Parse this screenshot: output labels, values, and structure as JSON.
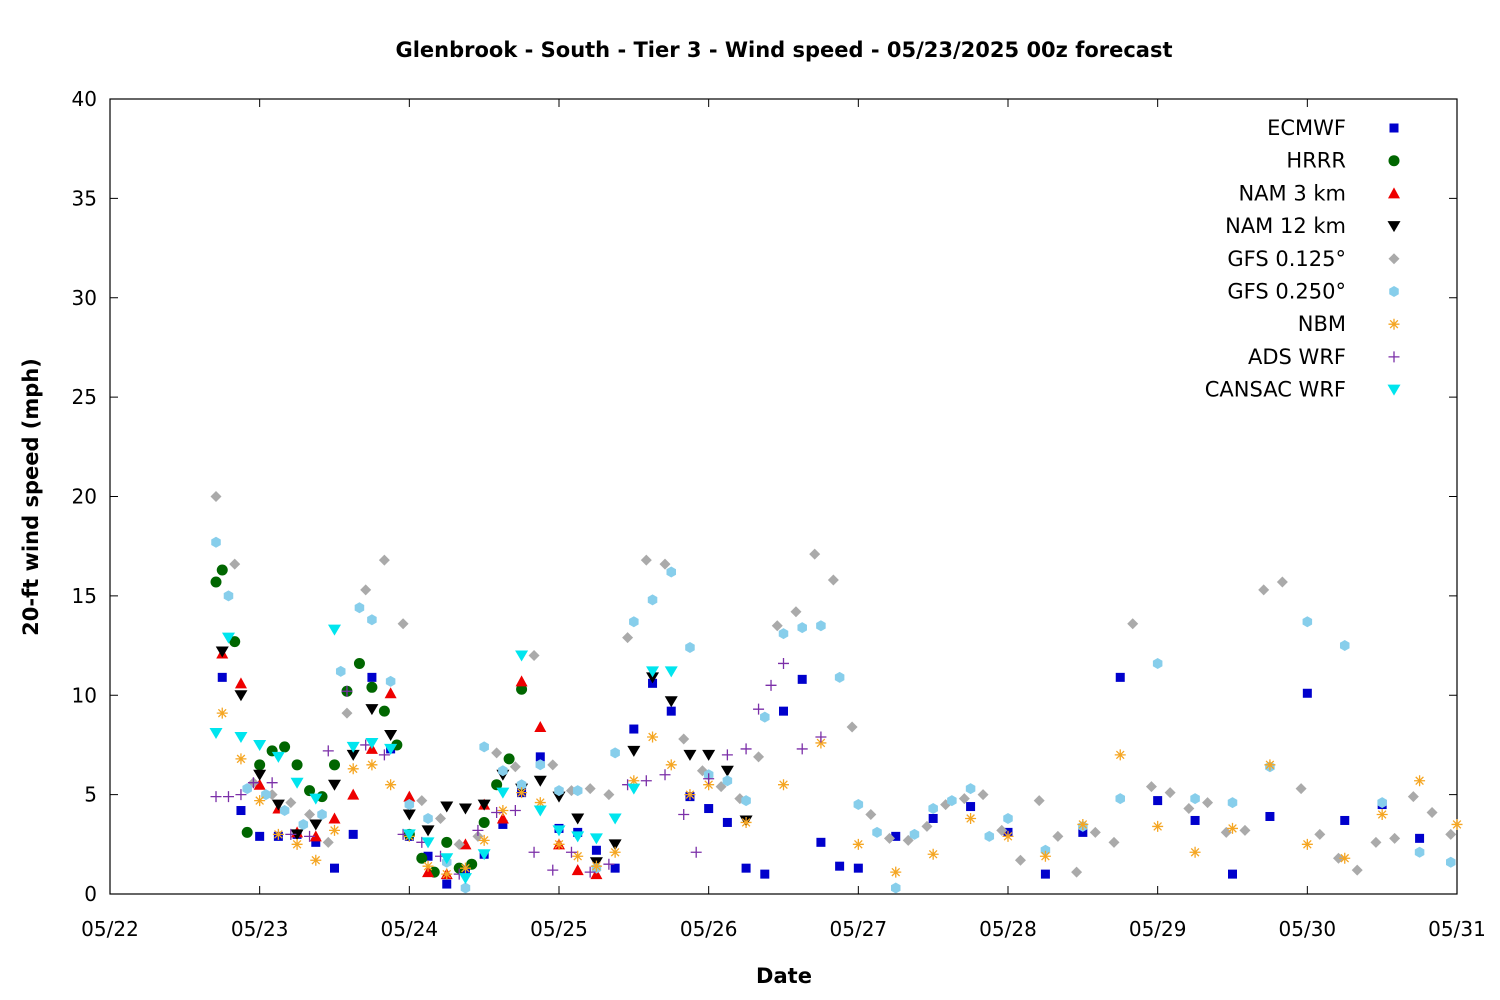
{
  "chart_data": {
    "type": "scatter",
    "title": "Glenbrook - South - Tier 3 - Wind speed - 05/23/2025 00z forecast",
    "xlabel": "Date",
    "ylabel": "20-ft wind speed (mph)",
    "xlim": [
      "05/22",
      "05/31"
    ],
    "ylim": [
      0,
      40
    ],
    "x_ticks": [
      "05/22",
      "05/23",
      "05/24",
      "05/25",
      "05/26",
      "05/27",
      "05/28",
      "05/29",
      "05/30",
      "05/31"
    ],
    "y_ticks": [
      "0",
      "5",
      "10",
      "15",
      "20",
      "25",
      "30",
      "35",
      "40"
    ],
    "grid": false,
    "legend_position": "top-right",
    "series": [
      {
        "name": "ECMWF",
        "color": "#0000cc",
        "marker": "square",
        "x": [
          "05/22 18:00",
          "05/22 21:00",
          "05/23 00:00",
          "05/23 03:00",
          "05/23 06:00",
          "05/23 09:00",
          "05/23 12:00",
          "05/23 15:00",
          "05/23 18:00",
          "05/23 21:00",
          "05/24 00:00",
          "05/24 03:00",
          "05/24 06:00",
          "05/24 09:00",
          "05/24 12:00",
          "05/24 15:00",
          "05/24 18:00",
          "05/24 21:00",
          "05/25 00:00",
          "05/25 03:00",
          "05/25 06:00",
          "05/25 09:00",
          "05/25 12:00",
          "05/25 15:00",
          "05/25 18:00",
          "05/25 21:00",
          "05/26 00:00",
          "05/26 03:00",
          "05/26 06:00",
          "05/26 09:00",
          "05/26 12:00",
          "05/26 15:00",
          "05/26 18:00",
          "05/26 21:00",
          "05/27 00:00",
          "05/27 06:00",
          "05/27 12:00",
          "05/27 18:00",
          "05/28 00:00",
          "05/28 06:00",
          "05/28 12:00",
          "05/28 18:00",
          "05/29 00:00",
          "05/29 06:00",
          "05/29 12:00",
          "05/29 18:00",
          "05/30 00:00",
          "05/30 06:00",
          "05/30 12:00",
          "05/30 18:00"
        ],
        "y": [
          10.9,
          4.2,
          2.9,
          2.9,
          3.0,
          2.6,
          1.3,
          3.0,
          10.9,
          7.3,
          2.9,
          1.9,
          0.5,
          1.2,
          2.0,
          3.5,
          5.1,
          6.9,
          3.3,
          3.1,
          2.2,
          1.3,
          8.3,
          10.6,
          9.2,
          4.9,
          4.3,
          3.6,
          1.3,
          1.0,
          9.2,
          10.8,
          2.6,
          1.4,
          1.3,
          2.9,
          3.8,
          4.4,
          3.1,
          1.0,
          3.1,
          10.9,
          4.7,
          3.7,
          1.0,
          3.9,
          10.1,
          3.7,
          4.5,
          2.8
        ]
      },
      {
        "name": "HRRR",
        "color": "#006600",
        "marker": "circle",
        "x": [
          "05/22 17:00",
          "05/22 18:00",
          "05/22 20:00",
          "05/22 22:00",
          "05/23 00:00",
          "05/23 02:00",
          "05/23 04:00",
          "05/23 06:00",
          "05/23 08:00",
          "05/23 10:00",
          "05/23 12:00",
          "05/23 14:00",
          "05/23 16:00",
          "05/23 18:00",
          "05/23 20:00",
          "05/23 22:00",
          "05/24 00:00",
          "05/24 02:00",
          "05/24 04:00",
          "05/24 06:00",
          "05/24 08:00",
          "05/24 10:00",
          "05/24 12:00",
          "05/24 14:00",
          "05/24 16:00",
          "05/24 18:00"
        ],
        "y": [
          15.7,
          16.3,
          12.7,
          3.1,
          6.5,
          7.2,
          7.4,
          6.5,
          5.2,
          4.9,
          6.5,
          10.2,
          11.6,
          10.4,
          9.2,
          7.5,
          3.0,
          1.8,
          1.1,
          2.6,
          1.3,
          1.5,
          3.6,
          5.5,
          6.8,
          10.3
        ]
      },
      {
        "name": "NAM 3 km",
        "color": "#ee0000",
        "marker": "triangle-up",
        "x": [
          "05/22 18:00",
          "05/22 21:00",
          "05/23 00:00",
          "05/23 03:00",
          "05/23 06:00",
          "05/23 09:00",
          "05/23 12:00",
          "05/23 15:00",
          "05/23 18:00",
          "05/23 21:00",
          "05/24 00:00",
          "05/24 03:00",
          "05/24 06:00",
          "05/24 09:00",
          "05/24 12:00",
          "05/24 15:00",
          "05/24 18:00",
          "05/24 21:00",
          "05/25 00:00",
          "05/25 03:00",
          "05/25 06:00"
        ],
        "y": [
          12.1,
          10.6,
          5.5,
          4.3,
          3.1,
          2.9,
          3.8,
          5.0,
          7.3,
          10.1,
          4.9,
          1.1,
          1.0,
          2.5,
          4.5,
          3.8,
          10.7,
          8.4,
          2.5,
          1.2,
          1.0
        ]
      },
      {
        "name": "NAM 12 km",
        "color": "#000000",
        "marker": "triangle-down",
        "x": [
          "05/22 18:00",
          "05/22 21:00",
          "05/23 00:00",
          "05/23 03:00",
          "05/23 06:00",
          "05/23 09:00",
          "05/23 12:00",
          "05/23 15:00",
          "05/23 18:00",
          "05/23 21:00",
          "05/24 00:00",
          "05/24 03:00",
          "05/24 06:00",
          "05/24 09:00",
          "05/24 12:00",
          "05/24 15:00",
          "05/24 18:00",
          "05/24 21:00",
          "05/25 00:00",
          "05/25 03:00",
          "05/25 06:00",
          "05/25 09:00",
          "05/25 12:00",
          "05/25 15:00",
          "05/25 18:00",
          "05/25 21:00",
          "05/26 00:00",
          "05/26 03:00",
          "05/26 06:00"
        ],
        "y": [
          12.2,
          10.0,
          6.0,
          4.5,
          3.0,
          3.5,
          5.5,
          7.0,
          9.3,
          8.0,
          4.0,
          3.2,
          4.4,
          4.3,
          4.5,
          6.0,
          5.3,
          5.7,
          4.9,
          3.8,
          1.6,
          2.5,
          7.2,
          10.9,
          9.7,
          7.0,
          7.0,
          6.2,
          3.7
        ]
      },
      {
        "name": "GFS 0.125°",
        "color": "#aaaaaa",
        "marker": "diamond",
        "x": [
          "05/22 17:00",
          "05/22 20:00",
          "05/22 23:00",
          "05/23 02:00",
          "05/23 05:00",
          "05/23 08:00",
          "05/23 11:00",
          "05/23 14:00",
          "05/23 17:00",
          "05/23 20:00",
          "05/23 23:00",
          "05/24 02:00",
          "05/24 05:00",
          "05/24 08:00",
          "05/24 11:00",
          "05/24 14:00",
          "05/24 17:00",
          "05/24 20:00",
          "05/24 23:00",
          "05/25 02:00",
          "05/25 05:00",
          "05/25 08:00",
          "05/25 11:00",
          "05/25 14:00",
          "05/25 17:00",
          "05/25 20:00",
          "05/25 23:00",
          "05/26 02:00",
          "05/26 05:00",
          "05/26 08:00",
          "05/26 11:00",
          "05/26 14:00",
          "05/26 17:00",
          "05/26 20:00",
          "05/26 23:00",
          "05/27 02:00",
          "05/27 05:00",
          "05/27 08:00",
          "05/27 11:00",
          "05/27 14:00",
          "05/27 17:00",
          "05/27 20:00",
          "05/27 23:00",
          "05/28 02:00",
          "05/28 05:00",
          "05/28 08:00",
          "05/28 11:00",
          "05/28 14:00",
          "05/28 17:00",
          "05/28 20:00",
          "05/28 23:00",
          "05/29 02:00",
          "05/29 05:00",
          "05/29 08:00",
          "05/29 11:00",
          "05/29 14:00",
          "05/29 17:00",
          "05/29 20:00",
          "05/29 23:00",
          "05/30 02:00",
          "05/30 05:00",
          "05/30 08:00",
          "05/30 11:00",
          "05/30 14:00",
          "05/30 17:00",
          "05/30 20:00",
          "05/30 23:00"
        ],
        "y": [
          20.0,
          16.6,
          5.6,
          5.0,
          4.6,
          4.0,
          2.6,
          9.1,
          15.3,
          16.8,
          13.6,
          4.7,
          3.8,
          2.5,
          2.9,
          7.1,
          6.4,
          12.0,
          6.5,
          5.2,
          5.3,
          5.0,
          12.9,
          16.8,
          16.6,
          7.8,
          6.2,
          5.4,
          4.8,
          6.9,
          13.5,
          14.2,
          17.1,
          15.8,
          8.4,
          4.0,
          2.8,
          2.7,
          3.4,
          4.5,
          4.8,
          5.0,
          3.2,
          1.7,
          4.7,
          2.9,
          1.1,
          3.1,
          2.6,
          13.6,
          5.4,
          5.1,
          4.3,
          4.6,
          3.1,
          3.2,
          15.3,
          15.7,
          5.3,
          3.0,
          1.8,
          1.2,
          2.6,
          2.8,
          4.9,
          4.1,
          3.0
        ]
      },
      {
        "name": "GFS 0.250°",
        "color": "#87ceeb",
        "marker": "hexagon",
        "x": [
          "05/22 17:00",
          "05/22 19:00",
          "05/22 22:00",
          "05/23 01:00",
          "05/23 04:00",
          "05/23 07:00",
          "05/23 10:00",
          "05/23 13:00",
          "05/23 16:00",
          "05/23 18:00",
          "05/23 21:00",
          "05/24 00:00",
          "05/24 03:00",
          "05/24 06:00",
          "05/24 09:00",
          "05/24 12:00",
          "05/24 15:00",
          "05/24 18:00",
          "05/24 21:00",
          "05/25 00:00",
          "05/25 03:00",
          "05/25 06:00",
          "05/25 09:00",
          "05/25 12:00",
          "05/25 15:00",
          "05/25 18:00",
          "05/25 21:00",
          "05/26 00:00",
          "05/26 03:00",
          "05/26 06:00",
          "05/26 09:00",
          "05/26 12:00",
          "05/26 15:00",
          "05/26 18:00",
          "05/26 21:00",
          "05/27 00:00",
          "05/27 03:00",
          "05/27 06:00",
          "05/27 09:00",
          "05/27 12:00",
          "05/27 15:00",
          "05/27 18:00",
          "05/27 21:00",
          "05/28 00:00",
          "05/28 06:00",
          "05/28 12:00",
          "05/28 18:00",
          "05/29 00:00",
          "05/29 06:00",
          "05/29 12:00",
          "05/29 18:00",
          "05/30 00:00",
          "05/30 06:00",
          "05/30 12:00",
          "05/30 18:00",
          "05/30 23:00"
        ],
        "y": [
          17.7,
          15.0,
          5.3,
          5.0,
          4.2,
          3.5,
          4.0,
          11.2,
          14.4,
          13.8,
          10.7,
          4.5,
          3.8,
          1.6,
          0.3,
          7.4,
          6.2,
          5.5,
          6.5,
          5.2,
          5.2,
          1.3,
          7.1,
          13.7,
          14.8,
          16.2,
          12.4,
          6.0,
          5.7,
          4.7,
          8.9,
          13.1,
          13.4,
          13.5,
          10.9,
          4.5,
          3.1,
          0.3,
          3.0,
          4.3,
          4.7,
          5.3,
          2.9,
          3.8,
          2.2,
          3.4,
          4.8,
          11.6,
          4.8,
          4.6,
          6.4,
          13.7,
          12.5,
          4.6,
          2.1,
          1.6
        ]
      },
      {
        "name": "NBM",
        "color": "#f5a623",
        "marker": "asterisk",
        "x": [
          "05/22 18:00",
          "05/22 21:00",
          "05/23 00:00",
          "05/23 03:00",
          "05/23 06:00",
          "05/23 09:00",
          "05/23 12:00",
          "05/23 15:00",
          "05/23 18:00",
          "05/23 21:00",
          "05/24 00:00",
          "05/24 03:00",
          "05/24 06:00",
          "05/24 09:00",
          "05/24 12:00",
          "05/24 15:00",
          "05/24 18:00",
          "05/24 21:00",
          "05/25 00:00",
          "05/25 03:00",
          "05/25 06:00",
          "05/25 09:00",
          "05/25 12:00",
          "05/25 15:00",
          "05/25 18:00",
          "05/25 21:00",
          "05/26 00:00",
          "05/26 06:00",
          "05/26 12:00",
          "05/26 18:00",
          "05/27 00:00",
          "05/27 06:00",
          "05/27 12:00",
          "05/27 18:00",
          "05/28 00:00",
          "05/28 06:00",
          "05/28 12:00",
          "05/28 18:00",
          "05/29 00:00",
          "05/29 06:00",
          "05/29 12:00",
          "05/29 18:00",
          "05/30 00:00",
          "05/30 06:00",
          "05/30 12:00",
          "05/30 18:00",
          "05/31 00:00"
        ],
        "y": [
          9.1,
          6.8,
          4.7,
          3.0,
          2.5,
          1.7,
          3.2,
          6.3,
          6.5,
          5.5,
          2.9,
          1.4,
          1.0,
          1.3,
          2.7,
          4.2,
          5.1,
          4.6,
          2.5,
          1.9,
          1.4,
          2.1,
          5.7,
          7.9,
          6.5,
          5.0,
          5.5,
          3.6,
          5.5,
          7.6,
          2.5,
          1.1,
          2.0,
          3.8,
          2.9,
          1.9,
          3.5,
          7.0,
          3.4,
          2.1,
          3.3,
          6.5,
          2.5,
          1.8,
          4.0,
          5.7,
          3.5
        ]
      },
      {
        "name": "ADS WRF",
        "color": "#7b2fa8",
        "marker": "plus",
        "x": [
          "05/22 17:00",
          "05/22 19:00",
          "05/22 21:00",
          "05/22 23:00",
          "05/23 02:00",
          "05/23 05:00",
          "05/23 08:00",
          "05/23 11:00",
          "05/23 14:00",
          "05/23 17:00",
          "05/23 20:00",
          "05/23 23:00",
          "05/24 02:00",
          "05/24 05:00",
          "05/24 08:00",
          "05/24 11:00",
          "05/24 14:00",
          "05/24 17:00",
          "05/24 20:00",
          "05/24 23:00",
          "05/25 02:00",
          "05/25 05:00",
          "05/25 08:00",
          "05/25 11:00",
          "05/25 14:00",
          "05/25 17:00",
          "05/25 20:00",
          "05/25 22:00",
          "05/26 00:00",
          "05/26 03:00",
          "05/26 06:00",
          "05/26 08:00",
          "05/26 10:00",
          "05/26 12:00",
          "05/26 15:00",
          "05/26 18:00"
        ],
        "y": [
          4.9,
          4.9,
          5.0,
          5.6,
          5.6,
          3.0,
          2.9,
          7.2,
          10.2,
          7.5,
          7.0,
          3.0,
          2.6,
          1.9,
          1.0,
          3.2,
          4.1,
          4.2,
          2.1,
          1.2,
          2.1,
          1.1,
          1.5,
          5.5,
          5.7,
          6.0,
          4.0,
          2.1,
          5.8,
          7.0,
          7.3,
          9.3,
          10.5,
          11.6,
          7.3,
          7.9
        ]
      },
      {
        "name": "CANSAC WRF",
        "color": "#00e5ee",
        "marker": "triangle-down",
        "x": [
          "05/22 17:00",
          "05/22 19:00",
          "05/22 21:00",
          "05/23 00:00",
          "05/23 03:00",
          "05/23 06:00",
          "05/23 09:00",
          "05/23 12:00",
          "05/23 15:00",
          "05/23 18:00",
          "05/23 21:00",
          "05/24 00:00",
          "05/24 03:00",
          "05/24 06:00",
          "05/24 09:00",
          "05/24 12:00",
          "05/24 15:00",
          "05/24 18:00",
          "05/24 21:00",
          "05/25 00:00",
          "05/25 03:00",
          "05/25 06:00",
          "05/25 09:00",
          "05/25 12:00",
          "05/25 15:00",
          "05/25 18:00"
        ],
        "y": [
          8.1,
          12.9,
          7.9,
          7.5,
          6.9,
          5.6,
          4.8,
          13.3,
          7.4,
          7.6,
          7.3,
          3.0,
          2.6,
          1.8,
          0.8,
          2.0,
          5.1,
          12.0,
          4.2,
          3.2,
          2.9,
          2.8,
          3.8,
          5.3,
          11.2,
          11.2
        ]
      }
    ]
  }
}
